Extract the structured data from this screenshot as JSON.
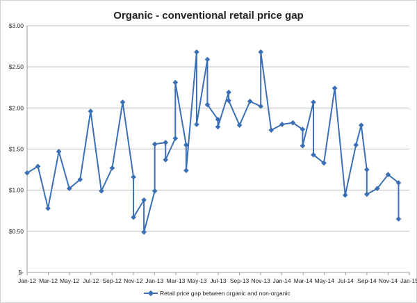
{
  "chart_data": {
    "type": "line",
    "title": "Organic - conventional  retail price gap",
    "xlabel": "",
    "ylabel": "",
    "ylim": [
      0,
      3
    ],
    "yticks": [
      0,
      0.5,
      1,
      1.5,
      2,
      2.5,
      3
    ],
    "ytick_labels": [
      "$-",
      "$0.50",
      "$1.00",
      "$1.50",
      "$2.00",
      "$2.50",
      "$3.00"
    ],
    "xlim": [
      "2012-01-01",
      "2015-01-01"
    ],
    "xtick_labels": [
      "Jan-12",
      "Mar-12",
      "May-12",
      "Jul-12",
      "Sep-12",
      "Nov-12",
      "Jan-13",
      "Mar-13",
      "May-13",
      "Jul-13",
      "Sep-13",
      "Nov-13",
      "Jan-14",
      "Mar-14",
      "May-14",
      "Jul-14",
      "Sep-14",
      "Nov-14",
      "Jan-15"
    ],
    "grid": "horizontal",
    "legend": "bottom",
    "color": "#3a6fb6",
    "series": [
      {
        "name": "Retail price gap between organic and non-organic",
        "x": [
          "2012-01-01",
          "2012-02-01",
          "2012-03-01",
          "2012-04-01",
          "2012-05-01",
          "2012-06-01",
          "2012-07-01",
          "2012-08-01",
          "2012-09-01",
          "2012-10-01",
          "2012-11-01",
          "2012-11-01",
          "2012-12-01",
          "2012-12-01",
          "2013-01-01",
          "2013-01-01",
          "2013-02-01",
          "2013-02-01",
          "2013-03-01",
          "2013-03-01",
          "2013-04-01",
          "2013-04-01",
          "2013-05-01",
          "2013-05-01",
          "2013-06-01",
          "2013-06-01",
          "2013-07-01",
          "2013-07-01",
          "2013-08-01",
          "2013-08-01",
          "2013-09-01",
          "2013-10-01",
          "2013-11-01",
          "2013-11-01",
          "2013-12-01",
          "2014-01-01",
          "2014-02-01",
          "2014-03-01",
          "2014-03-01",
          "2014-04-01",
          "2014-04-01",
          "2014-05-01",
          "2014-06-01",
          "2014-07-01",
          "2014-08-01",
          "2014-08-16",
          "2014-09-01",
          "2014-09-01",
          "2014-10-01",
          "2014-11-01",
          "2014-12-01",
          "2014-12-01"
        ],
        "values": [
          1.21,
          1.29,
          0.78,
          1.47,
          1.02,
          1.13,
          1.96,
          0.99,
          1.27,
          2.07,
          1.16,
          0.67,
          0.88,
          0.49,
          0.99,
          1.56,
          1.58,
          1.37,
          1.63,
          2.31,
          1.55,
          1.24,
          2.68,
          1.8,
          2.59,
          2.04,
          1.86,
          1.77,
          2.19,
          2.09,
          1.79,
          2.08,
          2.02,
          2.68,
          1.73,
          1.8,
          1.82,
          1.74,
          1.54,
          2.07,
          1.43,
          1.33,
          2.24,
          0.94,
          1.55,
          1.79,
          1.25,
          0.95,
          1.02,
          1.19,
          1.09,
          0.65
        ]
      }
    ]
  }
}
